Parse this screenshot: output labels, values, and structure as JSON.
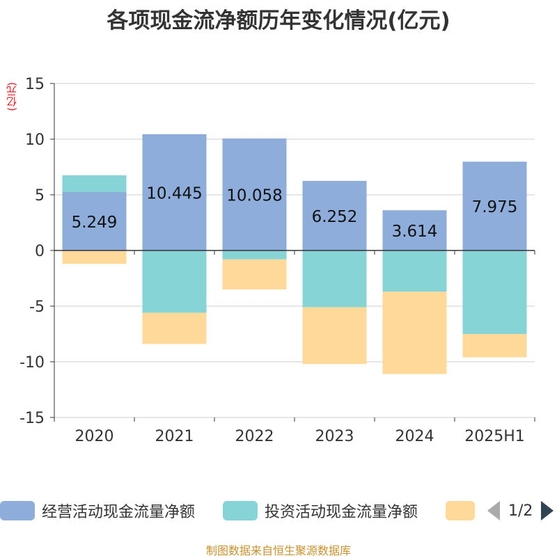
{
  "title": "各项现金流净额历年变化情况(亿元)",
  "source": "制图数据来自恒生聚源数据库",
  "legend_page": "1/2",
  "chart_data": {
    "type": "bar",
    "stacked": true,
    "title": "各项现金流净额历年变化情况(亿元)",
    "ylabel": "(亿元)",
    "ylim": [
      -15,
      15
    ],
    "yticks": [
      15,
      10,
      5,
      0,
      -5,
      -10,
      -15
    ],
    "grid": true,
    "legend_position": "bottom",
    "categories": [
      "2020",
      "2021",
      "2022",
      "2023",
      "2024",
      "2025H1"
    ],
    "series": [
      {
        "name": "经营活动现金流量净额",
        "color": "#8eadda",
        "values": [
          5.249,
          10.445,
          10.058,
          6.252,
          3.614,
          7.975
        ],
        "labels": [
          "5.249",
          "10.445",
          "10.058",
          "6.252",
          "3.614",
          "7.975"
        ]
      },
      {
        "name": "投资活动现金流量净额",
        "color": "#86d4d6",
        "values": [
          1.5,
          -5.6,
          -0.8,
          -5.1,
          -3.7,
          -7.5
        ]
      },
      {
        "name": "",
        "color": "#fed99a",
        "values": [
          -1.2,
          -2.8,
          -2.7,
          -5.1,
          -7.4,
          -2.1
        ]
      }
    ]
  }
}
